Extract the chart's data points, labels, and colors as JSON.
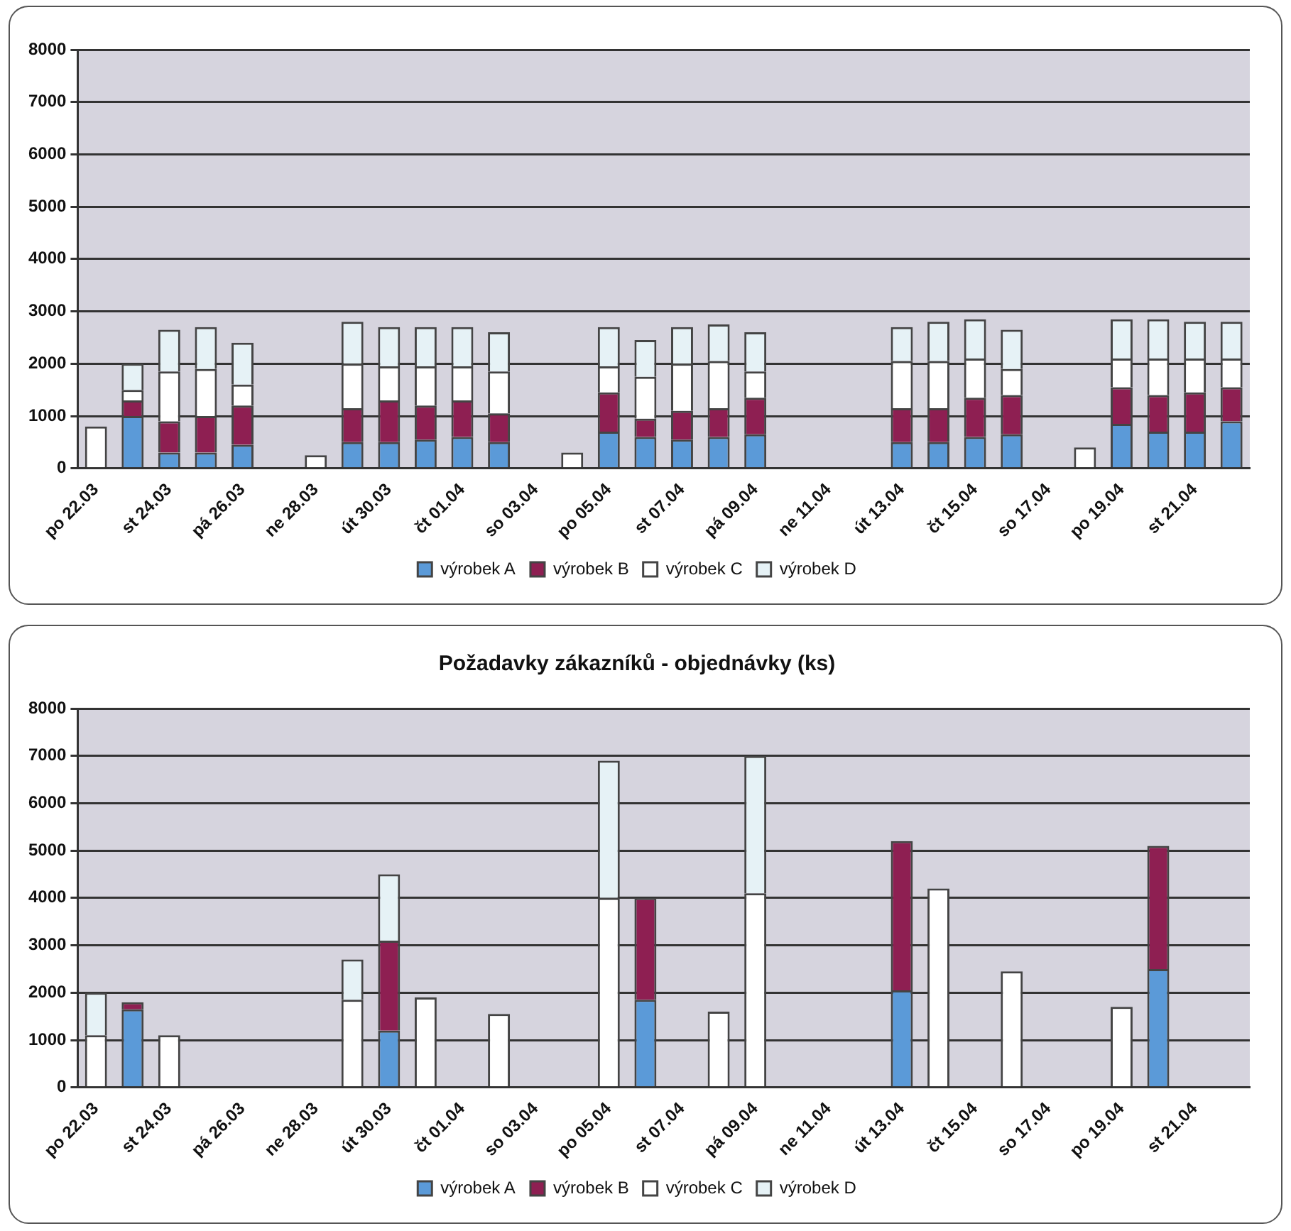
{
  "chart_data": [
    {
      "type": "bar",
      "stacked": true,
      "categories": [
        "po 22.03",
        null,
        "st 24.03",
        null,
        "pá 26.03",
        null,
        "ne 28.03",
        null,
        "út 30.03",
        null,
        "čt 01.04",
        null,
        "so 03.04",
        null,
        "po 05.04",
        null,
        "st 07.04",
        null,
        "pá 09.04",
        null,
        "ne 11.04",
        null,
        "út 13.04",
        null,
        "čt 15.04",
        null,
        "so 17.04",
        null,
        "po 19.04",
        null,
        "st 21.04",
        null
      ],
      "series": [
        {
          "name": "výrobek A",
          "color": "#5b9ad8",
          "values": [
            null,
            1000,
            300,
            300,
            450,
            null,
            null,
            500,
            500,
            550,
            600,
            500,
            null,
            null,
            700,
            600,
            550,
            600,
            650,
            null,
            null,
            null,
            500,
            500,
            600,
            650,
            null,
            null,
            850,
            700,
            700,
            900
          ]
        },
        {
          "name": "výrobek B",
          "color": "#8e1f52",
          "values": [
            null,
            300,
            600,
            700,
            750,
            null,
            null,
            650,
            800,
            650,
            700,
            550,
            null,
            null,
            750,
            350,
            550,
            550,
            700,
            null,
            null,
            null,
            650,
            650,
            750,
            750,
            null,
            null,
            700,
            700,
            750,
            650
          ]
        },
        {
          "name": "výrobek C",
          "color": "#ffffff",
          "values": [
            800,
            200,
            950,
            900,
            400,
            null,
            250,
            850,
            650,
            750,
            650,
            800,
            null,
            300,
            500,
            800,
            900,
            900,
            500,
            null,
            null,
            null,
            900,
            900,
            750,
            500,
            null,
            400,
            550,
            700,
            650,
            550
          ]
        },
        {
          "name": "výrobek D",
          "color": "#e6f2f6",
          "values": [
            null,
            500,
            800,
            800,
            800,
            null,
            null,
            800,
            750,
            750,
            750,
            750,
            null,
            null,
            750,
            700,
            700,
            700,
            750,
            null,
            null,
            null,
            650,
            750,
            750,
            750,
            null,
            null,
            750,
            750,
            700,
            700
          ]
        }
      ],
      "ylim": [
        0,
        8000
      ],
      "yticks": [
        0,
        1000,
        2000,
        3000,
        4000,
        5000,
        6000,
        7000,
        8000
      ],
      "grid": "y",
      "legend": "bottom"
    },
    {
      "type": "bar",
      "stacked": true,
      "title": "Požadavky zákazníků - objednávky (ks)",
      "categories": [
        "po 22.03",
        null,
        "st 24.03",
        null,
        "pá 26.03",
        null,
        "ne 28.03",
        null,
        "út 30.03",
        null,
        "čt 01.04",
        null,
        "so 03.04",
        null,
        "po 05.04",
        null,
        "st 07.04",
        null,
        "pá 09.04",
        null,
        "ne 11.04",
        null,
        "út 13.04",
        null,
        "čt 15.04",
        null,
        "so 17.04",
        null,
        "po 19.04",
        null,
        "st 21.04",
        null
      ],
      "series": [
        {
          "name": "výrobek A",
          "color": "#5b9ad8",
          "values": [
            null,
            1650,
            null,
            null,
            null,
            null,
            null,
            null,
            1200,
            null,
            null,
            null,
            null,
            null,
            null,
            1850,
            null,
            null,
            null,
            null,
            null,
            null,
            2050,
            null,
            null,
            null,
            null,
            null,
            null,
            2500,
            null,
            null
          ]
        },
        {
          "name": "výrobek B",
          "color": "#8e1f52",
          "values": [
            null,
            150,
            null,
            null,
            null,
            null,
            null,
            null,
            1900,
            null,
            null,
            null,
            null,
            null,
            null,
            2150,
            null,
            null,
            null,
            null,
            null,
            null,
            3150,
            null,
            null,
            null,
            null,
            null,
            null,
            2600,
            null,
            null
          ]
        },
        {
          "name": "výrobek C",
          "color": "#ffffff",
          "values": [
            1100,
            null,
            1100,
            null,
            null,
            null,
            null,
            1850,
            null,
            1900,
            null,
            1550,
            null,
            null,
            4000,
            null,
            null,
            1600,
            4100,
            null,
            null,
            null,
            null,
            4200,
            null,
            2450,
            null,
            null,
            1700,
            null,
            null,
            null
          ]
        },
        {
          "name": "výrobek D",
          "color": "#e6f2f6",
          "values": [
            900,
            null,
            null,
            null,
            null,
            null,
            null,
            850,
            1400,
            null,
            null,
            null,
            null,
            null,
            2900,
            null,
            null,
            null,
            2900,
            null,
            null,
            null,
            null,
            null,
            null,
            null,
            null,
            null,
            null,
            null,
            null,
            null
          ]
        }
      ],
      "ylim": [
        0,
        8000
      ],
      "yticks": [
        0,
        1000,
        2000,
        3000,
        4000,
        5000,
        6000,
        7000,
        8000
      ],
      "grid": "y",
      "legend": "bottom"
    }
  ]
}
